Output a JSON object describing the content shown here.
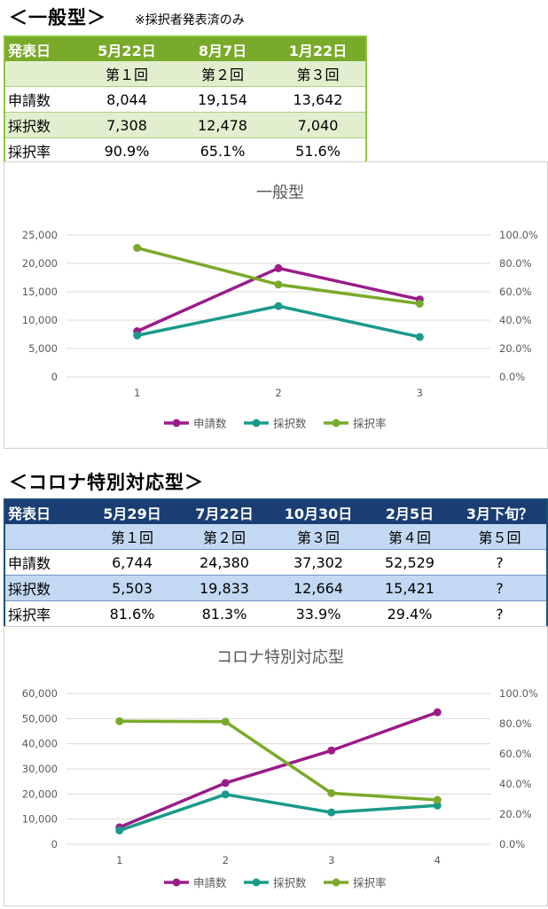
{
  "general": {
    "heading": "＜一般型＞",
    "note": "※採択者発表済のみ",
    "table": {
      "header_label": "発表日",
      "dates": [
        "5月22日",
        "8月7日",
        "1月22日"
      ],
      "rounds": [
        "第１回",
        "第２回",
        "第３回"
      ],
      "rows": [
        {
          "label": "申請数",
          "values": [
            "8,044",
            "19,154",
            "13,642"
          ]
        },
        {
          "label": "採択数",
          "values": [
            "7,308",
            "12,478",
            "7,040"
          ]
        },
        {
          "label": "採択率",
          "values": [
            "90.9%",
            "65.1%",
            "51.6%"
          ]
        }
      ]
    }
  },
  "corona": {
    "heading": "＜コロナ特別対応型＞",
    "table": {
      "header_label": "発表日",
      "dates": [
        "5月29日",
        "7月22日",
        "10月30日",
        "2月5日",
        "3月下旬？"
      ],
      "rounds": [
        "第１回",
        "第２回",
        "第３回",
        "第４回",
        "第５回"
      ],
      "rows": [
        {
          "label": "申請数",
          "values": [
            "6,744",
            "24,380",
            "37,302",
            "52,529",
            "?"
          ]
        },
        {
          "label": "採択数",
          "values": [
            "5,503",
            "19,833",
            "12,664",
            "15,421",
            "?"
          ]
        },
        {
          "label": "採択率",
          "values": [
            "81.6%",
            "81.3%",
            "33.9%",
            "29.4%",
            "?"
          ]
        }
      ]
    }
  },
  "chart_data": [
    {
      "type": "line",
      "title": "一般型",
      "x": [
        1,
        2,
        3
      ],
      "y_left_lim": [
        0,
        25000
      ],
      "y_left_ticks": [
        "0",
        "5,000",
        "10,000",
        "15,000",
        "20,000",
        "25,000"
      ],
      "y_right_lim": [
        0,
        100
      ],
      "y_right_ticks": [
        "0.0%",
        "20.0%",
        "40.0%",
        "60.0%",
        "80.0%",
        "100.0%"
      ],
      "grid": true,
      "legend": "bottom",
      "series": [
        {
          "name": "申請数",
          "axis": "left",
          "color": "#9b1c8a",
          "values": [
            8044,
            19154,
            13642
          ]
        },
        {
          "name": "採択数",
          "axis": "left",
          "color": "#1a9a8a",
          "values": [
            7308,
            12478,
            7040
          ]
        },
        {
          "name": "採択率",
          "axis": "right",
          "color": "#7aaa2a",
          "values": [
            90.9,
            65.1,
            51.6
          ]
        }
      ]
    },
    {
      "type": "line",
      "title": "コロナ特別対応型",
      "x": [
        1,
        2,
        3,
        4
      ],
      "y_left_lim": [
        0,
        60000
      ],
      "y_left_ticks": [
        "0",
        "10,000",
        "20,000",
        "30,000",
        "40,000",
        "50,000",
        "60,000"
      ],
      "y_right_lim": [
        0,
        100
      ],
      "y_right_ticks": [
        "0.0%",
        "20.0%",
        "40.0%",
        "60.0%",
        "80.0%",
        "100.0%"
      ],
      "grid": true,
      "legend": "bottom",
      "series": [
        {
          "name": "申請数",
          "axis": "left",
          "color": "#9b1c8a",
          "values": [
            6744,
            24380,
            37302,
            52529
          ]
        },
        {
          "name": "採択数",
          "axis": "left",
          "color": "#1a9a8a",
          "values": [
            5503,
            19833,
            12664,
            15421
          ]
        },
        {
          "name": "採択率",
          "axis": "right",
          "color": "#7aaa2a",
          "values": [
            81.6,
            81.3,
            33.9,
            29.4
          ]
        }
      ]
    }
  ]
}
